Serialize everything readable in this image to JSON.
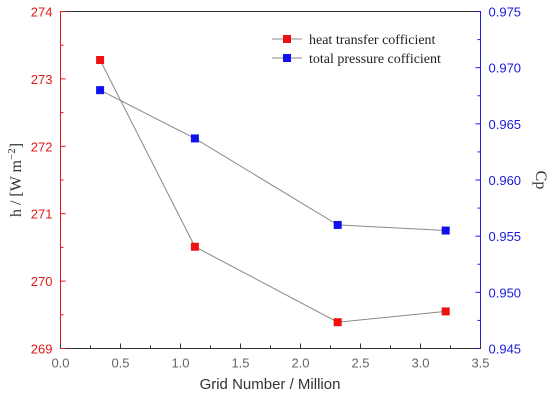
{
  "chart_data": {
    "type": "line",
    "xlabel": "Grid Number / Million",
    "ylabel_left": "h / [W m",
    "ylabel_left_sup": "−2",
    "ylabel_left_tail": "]",
    "ylabel_right": "Cp",
    "xlim": [
      0.0,
      3.5
    ],
    "ylim_left": [
      269,
      274
    ],
    "ylim_right": [
      0.945,
      0.975
    ],
    "x_ticks": [
      "0.0",
      "0.5",
      "1.0",
      "1.5",
      "2.0",
      "2.5",
      "3.0",
      "3.5"
    ],
    "y_left_ticks": [
      "269",
      "270",
      "271",
      "272",
      "273",
      "274"
    ],
    "y_right_ticks": [
      "0.945",
      "0.950",
      "0.955",
      "0.960",
      "0.965",
      "0.970",
      "0.975"
    ],
    "legend_position": "top-right",
    "grid": false,
    "series": [
      {
        "name": "heat transfer cofficient",
        "axis": "left",
        "color": "#ee1111",
        "x": [
          0.33,
          1.12,
          2.31,
          3.21
        ],
        "y": [
          273.28,
          270.51,
          269.39,
          269.55
        ]
      },
      {
        "name": "total pressure cofficient",
        "axis": "right",
        "color": "#1111ee",
        "x": [
          0.33,
          1.12,
          2.31,
          3.21
        ],
        "y": [
          0.968,
          0.9637,
          0.956,
          0.9555
        ]
      }
    ],
    "colors": {
      "left_axis": "#e01818",
      "right_axis": "#1a1ae0",
      "line": "#888888",
      "frame": "#333333"
    }
  }
}
